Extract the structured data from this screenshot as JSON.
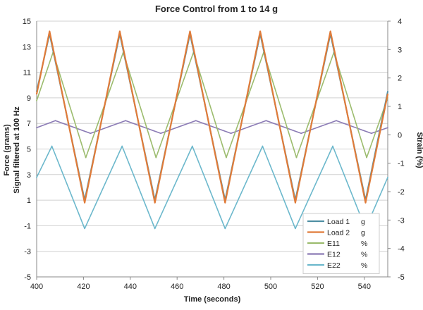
{
  "chart_data": {
    "type": "line",
    "title": "Force Control from 1 to 14 g",
    "xlabel": "Time (seconds)",
    "ylabel_primary": "Force (grams)",
    "ylabel_primary_sub": "Signal filtered at 100 Hz",
    "ylabel_secondary": "Strain (%)",
    "xlim": [
      400,
      550
    ],
    "ylim_primary": [
      -5,
      15
    ],
    "ylim_secondary": [
      -5,
      4
    ],
    "x_ticks": [
      "400",
      "420",
      "440",
      "460",
      "480",
      "500",
      "520",
      "540"
    ],
    "y_ticks_primary": [
      "-5",
      "-3",
      "-1",
      "1",
      "3",
      "5",
      "7",
      "9",
      "11",
      "13",
      "15"
    ],
    "y_ticks_secondary": [
      "-5",
      "-4",
      "-3",
      "-2",
      "-1",
      "0",
      "1",
      "2",
      "3",
      "4"
    ],
    "grid": true,
    "legend_position": "bottom-right",
    "series": [
      {
        "name": "Load 1",
        "unit": "g",
        "axis": "primary",
        "color": "#4f8fa3",
        "x": [
          400,
          405.5,
          420.5,
          435.5,
          450.5,
          465.5,
          480.5,
          495.5,
          510.5,
          525.5,
          540.5,
          550
        ],
        "y": [
          9.5,
          14,
          1,
          14,
          1,
          14,
          1,
          14,
          1,
          14,
          1,
          9.5
        ]
      },
      {
        "name": "Load 2",
        "unit": "g",
        "axis": "primary",
        "color": "#e07b39",
        "x": [
          400,
          405.5,
          420.5,
          435.5,
          450.5,
          465.5,
          480.5,
          495.5,
          510.5,
          525.5,
          540.5,
          550
        ],
        "y": [
          9.3,
          14.2,
          0.8,
          14.2,
          0.8,
          14.2,
          0.8,
          14.2,
          0.8,
          14.2,
          0.8,
          9.3
        ]
      },
      {
        "name": "E11",
        "unit": "%",
        "axis": "secondary",
        "color": "#9cbc6e",
        "x": [
          400,
          407,
          421,
          437,
          451,
          467,
          481,
          497,
          511,
          527,
          541,
          550
        ],
        "y": [
          1.2,
          2.9,
          -0.8,
          2.9,
          -0.8,
          2.9,
          -0.8,
          2.9,
          -0.8,
          2.9,
          -0.8,
          1.3
        ]
      },
      {
        "name": "E12",
        "unit": "%",
        "axis": "secondary",
        "color": "#8b7bb5",
        "x": [
          400,
          408,
          423,
          438,
          453,
          468,
          483,
          498,
          513,
          528,
          543,
          550
        ],
        "y": [
          0.25,
          0.5,
          0.05,
          0.5,
          0.05,
          0.5,
          0.05,
          0.5,
          0.05,
          0.5,
          0.05,
          0.25
        ]
      },
      {
        "name": "E22",
        "unit": "%",
        "axis": "secondary",
        "color": "#6cb8cc",
        "x": [
          400,
          406.5,
          420.5,
          436.5,
          450.5,
          466.5,
          480.5,
          496.5,
          510.5,
          526.5,
          540.5,
          550
        ],
        "y": [
          -1.5,
          -0.4,
          -3.3,
          -0.4,
          -3.3,
          -0.4,
          -3.3,
          -0.4,
          -3.3,
          -0.4,
          -3.3,
          -1.5
        ]
      }
    ]
  }
}
